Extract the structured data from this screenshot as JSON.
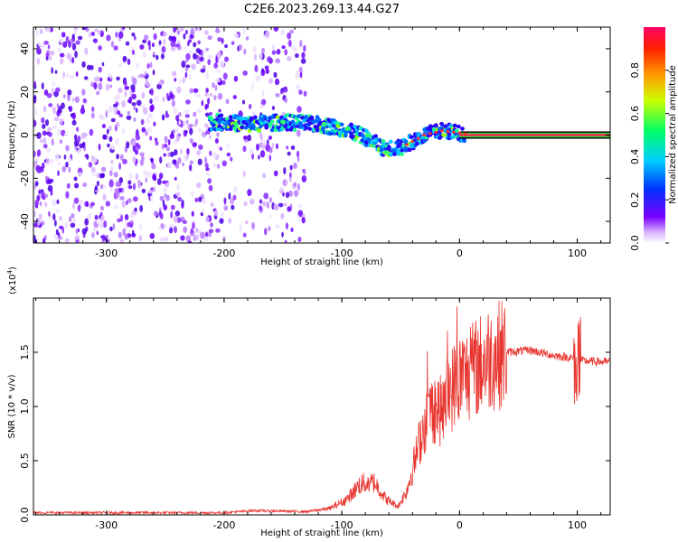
{
  "title": "C2E6.2023.269.13.44.G27",
  "spectrogram": {
    "type": "heatmap",
    "xlabel": "Height of straight line (km)",
    "ylabel": "Frequency (Hz)",
    "xlim": [
      -362,
      128
    ],
    "ylim": [
      -50,
      50
    ],
    "xticks": [
      -300,
      -200,
      -100,
      0,
      100
    ],
    "yticks": [
      -40,
      -20,
      0,
      20,
      40
    ],
    "colorbar": {
      "label": "Normalized spectral amplitude",
      "range": [
        0,
        1
      ],
      "ticks": [
        "0.0",
        "0.2",
        "0.4",
        "0.6",
        "0.8"
      ]
    },
    "ridge": [
      {
        "x": -200,
        "f": 6
      },
      {
        "x": -180,
        "f": 5
      },
      {
        "x": -150,
        "f": 6
      },
      {
        "x": -120,
        "f": 5
      },
      {
        "x": -100,
        "f": 3
      },
      {
        "x": -80,
        "f": -1
      },
      {
        "x": -65,
        "f": -6
      },
      {
        "x": -50,
        "f": -6
      },
      {
        "x": -40,
        "f": -3
      },
      {
        "x": -30,
        "f": 0
      },
      {
        "x": -15,
        "f": 2
      },
      {
        "x": 0,
        "f": 1
      },
      {
        "x": 10,
        "f": 0
      },
      {
        "x": 128,
        "f": 0
      }
    ]
  },
  "snr_plot": {
    "type": "line",
    "xlabel": "Height of straight line (km)",
    "ylabel": "SNR (10 * v/v)",
    "scale_label": "(x10",
    "scale_exp": "4",
    "scale_close": ")",
    "xlim": [
      -362,
      128
    ],
    "ylim": [
      0,
      2
    ],
    "xticks": [
      -300,
      -200,
      -100,
      0,
      100
    ],
    "yticks": [
      "0.0",
      "0.5",
      "1.0",
      "1.5"
    ],
    "color": "#e8352f",
    "envelope": [
      {
        "x": -362,
        "y": 0.02
      },
      {
        "x": -200,
        "y": 0.02
      },
      {
        "x": -175,
        "y": 0.04
      },
      {
        "x": -130,
        "y": 0.03
      },
      {
        "x": -110,
        "y": 0.06
      },
      {
        "x": -95,
        "y": 0.15
      },
      {
        "x": -85,
        "y": 0.28
      },
      {
        "x": -78,
        "y": 0.3
      },
      {
        "x": -72,
        "y": 0.3
      },
      {
        "x": -62,
        "y": 0.14
      },
      {
        "x": -52,
        "y": 0.08
      },
      {
        "x": -45,
        "y": 0.22
      },
      {
        "x": -38,
        "y": 0.5
      },
      {
        "x": -30,
        "y": 0.85
      },
      {
        "x": -22,
        "y": 1.0
      },
      {
        "x": -15,
        "y": 0.95
      },
      {
        "x": -8,
        "y": 1.15
      },
      {
        "x": 0,
        "y": 1.25
      },
      {
        "x": 10,
        "y": 1.32
      },
      {
        "x": 25,
        "y": 1.45
      },
      {
        "x": 40,
        "y": 1.5
      },
      {
        "x": 60,
        "y": 1.52
      },
      {
        "x": 80,
        "y": 1.47
      },
      {
        "x": 95,
        "y": 1.45
      },
      {
        "x": 105,
        "y": 1.42
      },
      {
        "x": 128,
        "y": 1.41
      }
    ]
  }
}
